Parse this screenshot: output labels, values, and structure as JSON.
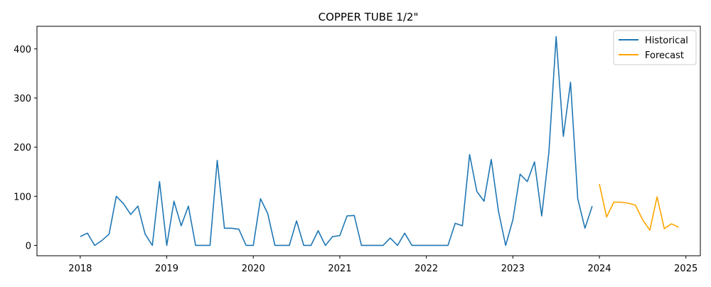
{
  "chart_data": {
    "type": "line",
    "title": "COPPER TUBE 1/2\"",
    "xlabel": "",
    "ylabel": "",
    "x_ticks": [
      "2018",
      "2019",
      "2020",
      "2021",
      "2022",
      "2023",
      "2024",
      "2025"
    ],
    "y_ticks": [
      0,
      100,
      200,
      300,
      400
    ],
    "xlim": [
      "2017-07",
      "2025-03"
    ],
    "ylim": [
      -21,
      446
    ],
    "grid": false,
    "legend_position": "top-right",
    "series": [
      {
        "name": "Historical",
        "color": "#1f77b4",
        "x": [
          "2018-01",
          "2018-02",
          "2018-03",
          "2018-04",
          "2018-05",
          "2018-06",
          "2018-07",
          "2018-08",
          "2018-09",
          "2018-10",
          "2018-11",
          "2018-12",
          "2019-01",
          "2019-02",
          "2019-03",
          "2019-04",
          "2019-05",
          "2019-06",
          "2019-07",
          "2019-08",
          "2019-09",
          "2019-10",
          "2019-11",
          "2019-12",
          "2020-01",
          "2020-02",
          "2020-03",
          "2020-04",
          "2020-05",
          "2020-06",
          "2020-07",
          "2020-08",
          "2020-09",
          "2020-10",
          "2020-11",
          "2020-12",
          "2021-01",
          "2021-02",
          "2021-03",
          "2021-04",
          "2021-05",
          "2021-06",
          "2021-07",
          "2021-08",
          "2021-09",
          "2021-10",
          "2021-11",
          "2021-12",
          "2022-01",
          "2022-02",
          "2022-03",
          "2022-04",
          "2022-05",
          "2022-06",
          "2022-07",
          "2022-08",
          "2022-09",
          "2022-10",
          "2022-11",
          "2022-12",
          "2023-01",
          "2023-02",
          "2023-03",
          "2023-04",
          "2023-05",
          "2023-06",
          "2023-07",
          "2023-08",
          "2023-09",
          "2023-10",
          "2023-11",
          "2023-12"
        ],
        "values": [
          18,
          25,
          0,
          10,
          23,
          100,
          85,
          63,
          80,
          23,
          0,
          130,
          0,
          90,
          40,
          80,
          0,
          0,
          0,
          173,
          35,
          35,
          33,
          0,
          0,
          95,
          65,
          0,
          0,
          0,
          50,
          0,
          0,
          30,
          0,
          18,
          20,
          60,
          61,
          0,
          0,
          0,
          0,
          15,
          0,
          25,
          0,
          0,
          0,
          0,
          0,
          0,
          45,
          40,
          185,
          110,
          90,
          175,
          70,
          0,
          52,
          145,
          130,
          170,
          60,
          190,
          425,
          222,
          332,
          95,
          35,
          80
        ]
      },
      {
        "name": "Forecast",
        "color": "#ffa500",
        "x": [
          "2024-01",
          "2024-02",
          "2024-03",
          "2024-04",
          "2024-05",
          "2024-06",
          "2024-07",
          "2024-08",
          "2024-09",
          "2024-10",
          "2024-11",
          "2024-12"
        ],
        "values": [
          125,
          58,
          88,
          88,
          86,
          82,
          52,
          31,
          99,
          34,
          44,
          37
        ]
      }
    ]
  }
}
